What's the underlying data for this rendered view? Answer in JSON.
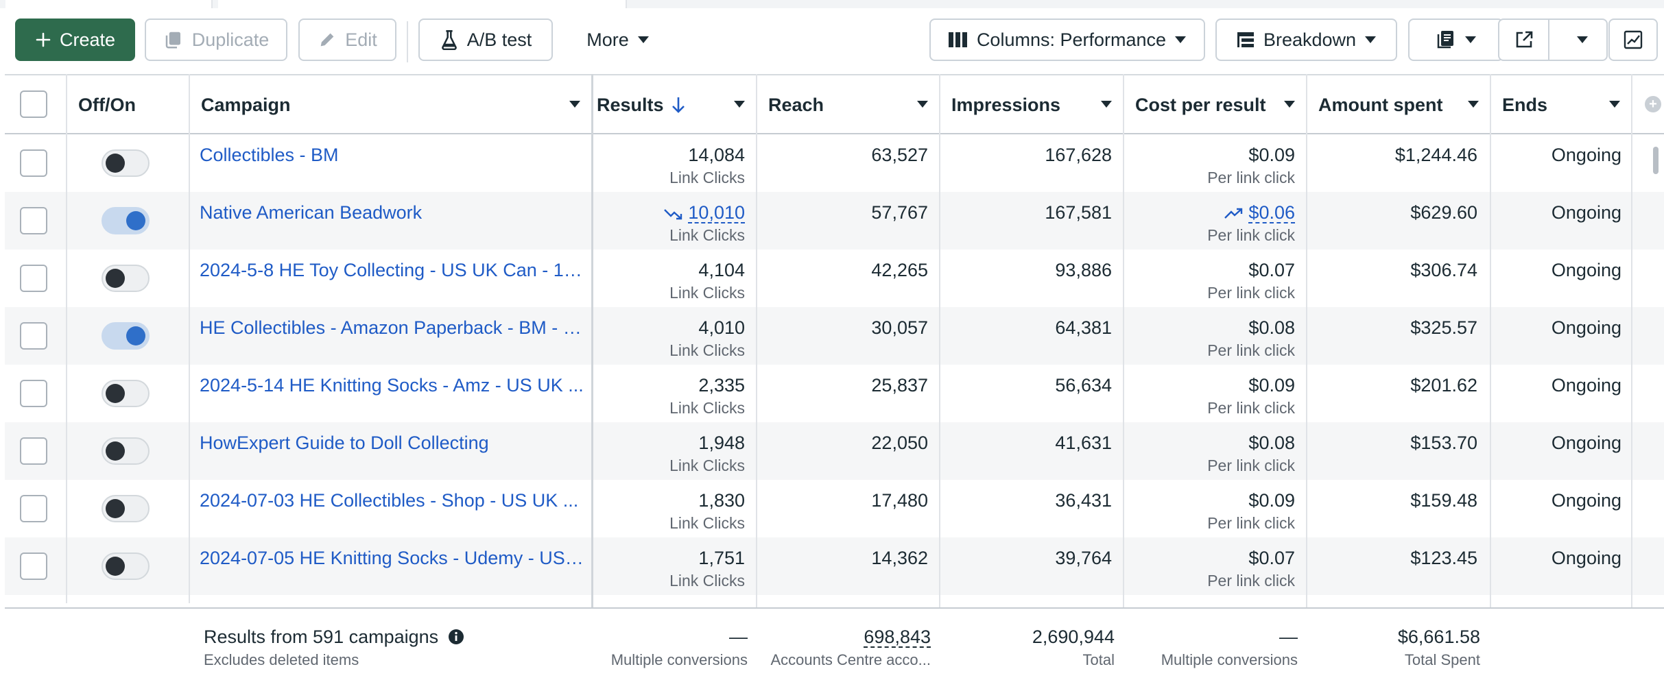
{
  "toolbar": {
    "create_label": "Create",
    "duplicate_label": "Duplicate",
    "edit_label": "Edit",
    "ab_test_label": "A/B test",
    "more_label": "More",
    "columns_label": "Columns: Performance",
    "breakdown_label": "Breakdown"
  },
  "table": {
    "headers": {
      "offon": "Off/On",
      "campaign": "Campaign",
      "results": "Results",
      "reach": "Reach",
      "impressions": "Impressions",
      "cost_per_result": "Cost per result",
      "amount_spent": "Amount spent",
      "ends": "Ends"
    },
    "sort": {
      "column": "results",
      "direction": "descending"
    },
    "rows": [
      {
        "on": false,
        "campaign": "Collectibles - BM",
        "results": "14,084",
        "results_type": "Link Clicks",
        "reach": "63,527",
        "impressions": "167,628",
        "cost": "$0.09",
        "cost_type": "Per link click",
        "spent": "$1,244.46",
        "ends": "Ongoing"
      },
      {
        "on": true,
        "campaign": "Native American Beadwork",
        "results": "10,010",
        "results_trend": "down",
        "results_type": "Link Clicks",
        "reach": "57,767",
        "impressions": "167,581",
        "cost": "$0.06",
        "cost_trend": "up",
        "cost_type": "Per link click",
        "spent": "$629.60",
        "ends": "Ongoing"
      },
      {
        "on": false,
        "campaign": "2024-5-8 HE Toy Collecting - US UK Can - 1 - ...",
        "results": "4,104",
        "results_type": "Link Clicks",
        "reach": "42,265",
        "impressions": "93,886",
        "cost": "$0.07",
        "cost_type": "Per link click",
        "spent": "$306.74",
        "ends": "Ongoing"
      },
      {
        "on": true,
        "campaign": "HE Collectibles - Amazon Paperback - BM - C...",
        "results": "4,010",
        "results_type": "Link Clicks",
        "reach": "30,057",
        "impressions": "64,381",
        "cost": "$0.08",
        "cost_type": "Per link click",
        "spent": "$325.57",
        "ends": "Ongoing"
      },
      {
        "on": false,
        "campaign": "2024-5-14 HE Knitting Socks - Amz - US UK ...",
        "results": "2,335",
        "results_type": "Link Clicks",
        "reach": "25,837",
        "impressions": "56,634",
        "cost": "$0.09",
        "cost_type": "Per link click",
        "spent": "$201.62",
        "ends": "Ongoing"
      },
      {
        "on": false,
        "campaign": "HowExpert Guide to Doll Collecting",
        "results": "1,948",
        "results_type": "Link Clicks",
        "reach": "22,050",
        "impressions": "41,631",
        "cost": "$0.08",
        "cost_type": "Per link click",
        "spent": "$153.70",
        "ends": "Ongoing"
      },
      {
        "on": false,
        "campaign": "2024-07-03 HE Collectibles - Shop - US UK ...",
        "results": "1,830",
        "results_type": "Link Clicks",
        "reach": "17,480",
        "impressions": "36,431",
        "cost": "$0.09",
        "cost_type": "Per link click",
        "spent": "$159.48",
        "ends": "Ongoing"
      },
      {
        "on": false,
        "campaign": "2024-07-05 HE Knitting Socks - Udemy - US ...",
        "results": "1,751",
        "results_type": "Link Clicks",
        "reach": "14,362",
        "impressions": "39,764",
        "cost": "$0.07",
        "cost_type": "Per link click",
        "spent": "$123.45",
        "ends": "Ongoing"
      }
    ]
  },
  "footer": {
    "title": "Results from 591 campaigns",
    "subtitle": "Excludes deleted items",
    "results": "—",
    "results_sub": "Multiple conversions",
    "reach": "698,843",
    "reach_sub": "Accounts Centre acco...",
    "impressions": "2,690,944",
    "impressions_sub": "Total",
    "cost": "—",
    "cost_sub": "Multiple conversions",
    "spent": "$6,661.58",
    "spent_sub": "Total Spent"
  },
  "icons": {
    "create": "plus-icon",
    "duplicate": "duplicate-icon",
    "edit": "pencil-icon",
    "ab_test": "flask-icon",
    "columns": "columns-icon",
    "breakdown": "breakdown-icon",
    "reports": "reports-icon",
    "export": "export-icon",
    "chart": "chart-icon",
    "info": "info-icon"
  },
  "colors": {
    "primary": "#2e6b4d",
    "link": "#1f5bc6",
    "toggle_on": "#2f6fc9"
  }
}
